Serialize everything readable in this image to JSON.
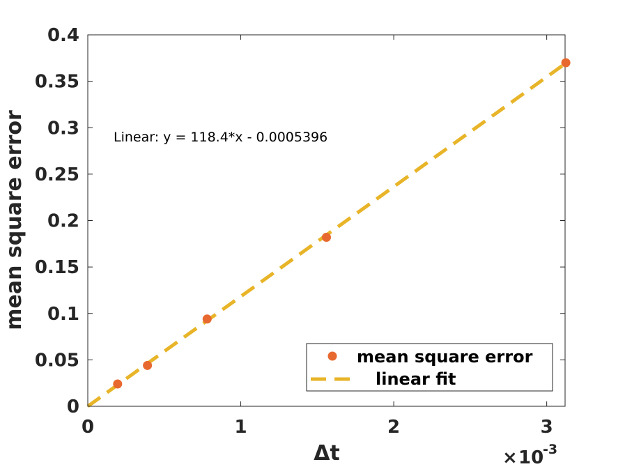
{
  "chart_data": {
    "type": "scatter",
    "title": "",
    "xlabel": "Δt",
    "ylabel": "mean square error",
    "x_multiplier_label": "10",
    "x_multiplier_exponent": "-3",
    "xlim": [
      0,
      0.00312
    ],
    "ylim": [
      0,
      0.4
    ],
    "xticks": [
      0,
      0.001,
      0.002,
      0.003
    ],
    "xtick_labels": [
      "0",
      "1",
      "2",
      "3"
    ],
    "yticks": [
      0,
      0.05,
      0.1,
      0.15,
      0.2,
      0.25,
      0.3,
      0.35,
      0.4
    ],
    "ytick_labels": [
      "0",
      "0.05",
      "0.1",
      "0.15",
      "0.2",
      "0.25",
      "0.3",
      "0.35",
      "0.4"
    ],
    "grid": false,
    "legend_position": "bottom-right",
    "annotation": "Linear:  y = 118.4*x - 0.0005396",
    "series": [
      {
        "name": "mean square error",
        "kind": "scatter",
        "color": "#e8692f",
        "x": [
          0.000195,
          0.00039,
          0.00078,
          0.00156,
          0.003125
        ],
        "y": [
          0.024,
          0.044,
          0.094,
          0.182,
          0.37
        ]
      },
      {
        "name": "linear fit",
        "kind": "line",
        "style": "dashed",
        "color": "#e8b428",
        "slope": 118.4,
        "intercept": -0.0005396,
        "x": [
          0,
          0.003125
        ],
        "y": [
          -0.0005396,
          0.36946
        ]
      }
    ]
  }
}
